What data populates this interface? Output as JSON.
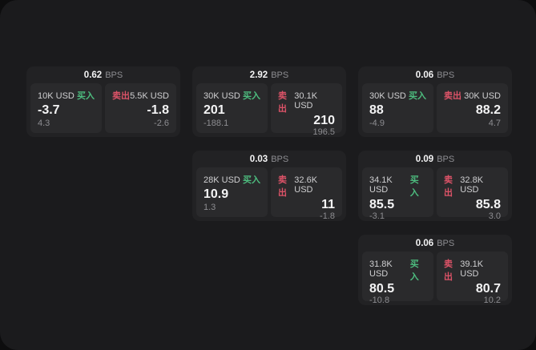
{
  "theme": {
    "page_bg": "#0d0d0e",
    "surface_bg": "#1b1b1d",
    "card_bg": "#222224",
    "panel_bg": "#2a2a2c",
    "buy_color": "#4dbd7f",
    "sell_color": "#dd5368",
    "text_primary": "#f4f4f5",
    "text_secondary": "#cfcfd1",
    "text_muted": "#8d8d91"
  },
  "labels": {
    "bps_unit": "BPS",
    "buy": "买入",
    "sell": "卖出"
  },
  "cards": [
    {
      "bps": "0.62",
      "buy": {
        "amount": "10K USD",
        "main": "-3.7",
        "sub": "4.3"
      },
      "sell": {
        "amount": "5.5K USD",
        "main": "-1.8",
        "sub": "-2.6"
      }
    },
    {
      "bps": "2.92",
      "buy": {
        "amount": "30K USD",
        "main": "201",
        "sub": "-188.1"
      },
      "sell": {
        "amount": "30.1K USD",
        "main": "210",
        "sub": "196.5"
      }
    },
    {
      "bps": "0.06",
      "buy": {
        "amount": "30K USD",
        "main": "88",
        "sub": "-4.9"
      },
      "sell": {
        "amount": "30K USD",
        "main": "88.2",
        "sub": "4.7"
      }
    },
    {
      "bps": "0.03",
      "buy": {
        "amount": "28K USD",
        "main": "10.9",
        "sub": "1.3"
      },
      "sell": {
        "amount": "32.6K USD",
        "main": "11",
        "sub": "-1.8"
      }
    },
    {
      "bps": "0.09",
      "buy": {
        "amount": "34.1K USD",
        "main": "85.5",
        "sub": "-3.1"
      },
      "sell": {
        "amount": "32.8K USD",
        "main": "85.8",
        "sub": "3.0"
      }
    },
    {
      "bps": "0.06",
      "buy": {
        "amount": "31.8K USD",
        "main": "80.5",
        "sub": "-10.8"
      },
      "sell": {
        "amount": "39.1K USD",
        "main": "80.7",
        "sub": "10.2"
      }
    }
  ]
}
